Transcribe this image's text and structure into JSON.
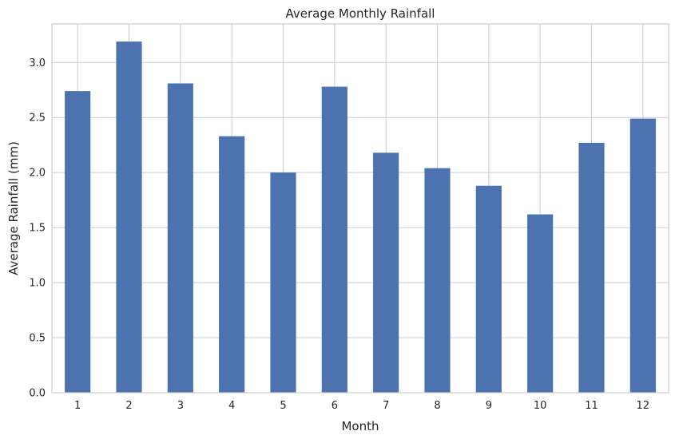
{
  "chart_data": {
    "type": "bar",
    "title": "Average Monthly Rainfall",
    "xlabel": "Month",
    "ylabel": "Average Rainfall (mm)",
    "categories": [
      "1",
      "2",
      "3",
      "4",
      "5",
      "6",
      "7",
      "8",
      "9",
      "10",
      "11",
      "12"
    ],
    "values": [
      2.74,
      3.19,
      2.81,
      2.33,
      2.0,
      2.78,
      2.18,
      2.04,
      1.88,
      1.62,
      2.27,
      2.49
    ],
    "ylim": [
      0,
      3.35
    ],
    "yticks": [
      "0.0",
      "0.5",
      "1.0",
      "1.5",
      "2.0",
      "2.5",
      "3.0"
    ],
    "grid": true,
    "bar_color": "#4c72b0",
    "background_color": "#ffffff",
    "grid_color": "#cccccc"
  }
}
